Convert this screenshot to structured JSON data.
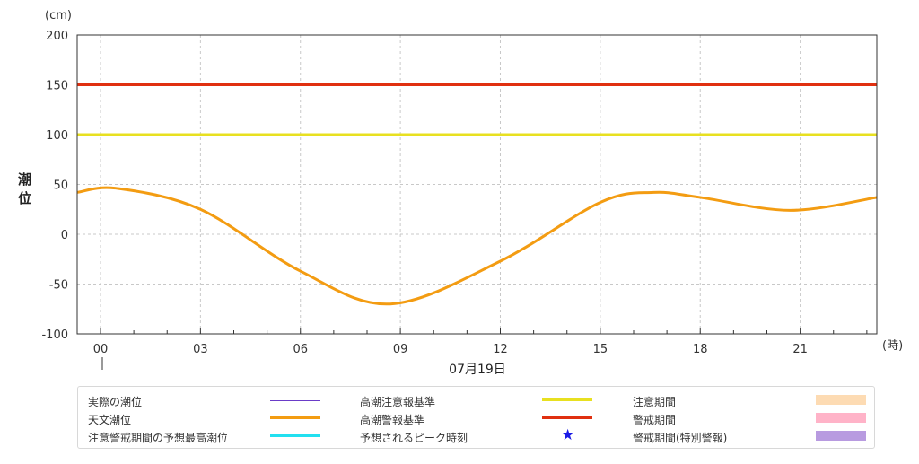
{
  "chart_data": {
    "type": "line",
    "y_unit": "(cm)",
    "ylabel": "潮位",
    "x_unit": "(時)",
    "ylim": [
      -100,
      200
    ],
    "y_ticks": [
      "200",
      "150",
      "100",
      "50",
      "0",
      "-50",
      "-100"
    ],
    "x_ticks": [
      "00",
      "03",
      "06",
      "09",
      "12",
      "15",
      "18",
      "21"
    ],
    "x_range_hours": [
      -0.7,
      23.3
    ],
    "date": "07月19日",
    "grid": true,
    "series": [
      {
        "name": "天文潮位",
        "color": "#f39c12",
        "x": [
          -0.7,
          0.5,
          3,
          6,
          8.7,
          12,
          15,
          16.6,
          18,
          20.7,
          23.3
        ],
        "values": [
          42,
          46,
          25,
          -37,
          -70,
          -27,
          32,
          42,
          37,
          24,
          37
        ]
      },
      {
        "name": "高潮注意報基準",
        "color": "#e8e020",
        "x": [
          -0.7,
          23.3
        ],
        "values": [
          100,
          100
        ]
      },
      {
        "name": "高潮警報基準",
        "color": "#e03010",
        "x": [
          -0.7,
          23.3
        ],
        "values": [
          150,
          150
        ]
      }
    ]
  },
  "legend": {
    "col1": [
      {
        "label": "実際の潮位",
        "color": "#6a3cc8"
      },
      {
        "label": "天文潮位",
        "color": "#f39c12"
      },
      {
        "label": "注意警戒期間の予想最高潮位",
        "color": "#22e0f0"
      }
    ],
    "col2": [
      {
        "label": "高潮注意報基準",
        "color": "#e8e020"
      },
      {
        "label": "高潮警報基準",
        "color": "#e03010"
      },
      {
        "label": "予想されるピーク時刻",
        "icon": "star-icon",
        "symbol": "★",
        "color": "#1a1ae6"
      }
    ],
    "col3": [
      {
        "label": "注意期間",
        "color": "#fddbb3"
      },
      {
        "label": "警戒期間",
        "color": "#ffb3c8"
      },
      {
        "label": "警戒期間(特別警報)",
        "color": "#b89be0"
      }
    ]
  }
}
